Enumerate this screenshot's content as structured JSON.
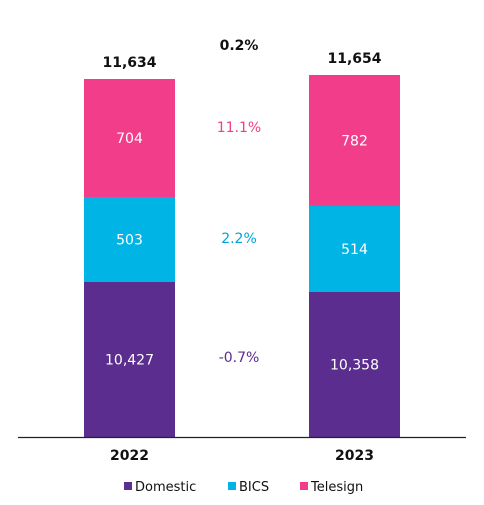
{
  "chart_data": {
    "type": "bar",
    "stacked": true,
    "categories": [
      "2022",
      "2023"
    ],
    "series": [
      {
        "name": "Domestic",
        "values": [
          10427,
          10358
        ],
        "labels": [
          "10,427",
          "10,358"
        ],
        "color": "#5b2d8e",
        "change": "-0.7%",
        "change_color": "#5b2d8e"
      },
      {
        "name": "BICS",
        "values": [
          503,
          514
        ],
        "labels": [
          "503",
          "514"
        ],
        "color": "#00b4e6",
        "change": "2.2%",
        "change_color": "#00a3d8"
      },
      {
        "name": "Telesign",
        "values": [
          704,
          782
        ],
        "labels": [
          "704",
          "782"
        ],
        "color": "#f23d8a",
        "change": "11.1%",
        "change_color": "#f23d8a"
      }
    ],
    "totals": [
      "11,634",
      "11,654"
    ],
    "total_change": "0.2%",
    "legend": "bottom"
  }
}
